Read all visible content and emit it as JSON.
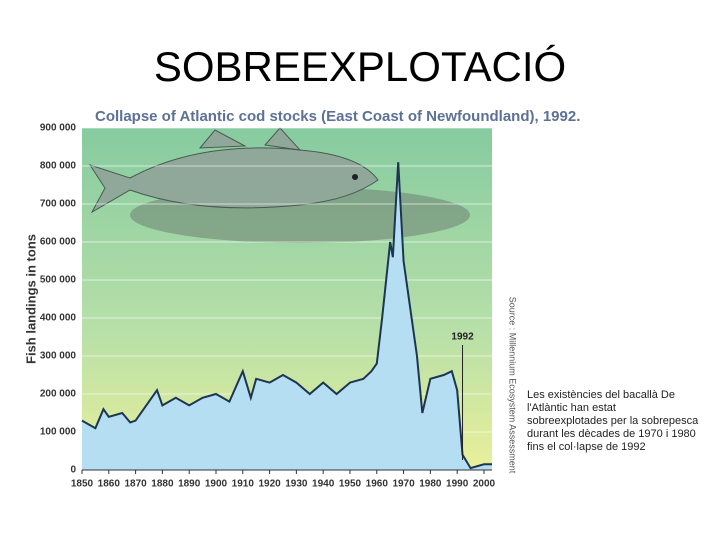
{
  "title": "SOBREEXPLOTACIÓ",
  "caption": [
    "Les existències del bacallà De",
    "l'Atlàntic han estat",
    "sobreexplotades per la sobrepesca",
    "durant les dècades de 1970 i 1980",
    "fins el col·lapse de 1992"
  ],
  "chart_data": {
    "type": "area",
    "title": "Collapse of Atlantic cod stocks (East Coast of Newfoundland), 1992.",
    "y_label": "Fish landings in tons",
    "source": "Source : Millennium Ecosystem Assessment",
    "annotations": [
      {
        "text": "1992",
        "x": 1992
      }
    ],
    "x": [
      1850,
      1855,
      1858,
      1860,
      1865,
      1868,
      1870,
      1875,
      1878,
      1880,
      1885,
      1890,
      1895,
      1900,
      1905,
      1910,
      1913,
      1915,
      1920,
      1925,
      1930,
      1935,
      1940,
      1945,
      1950,
      1955,
      1958,
      1960,
      1962,
      1965,
      1966,
      1968,
      1970,
      1972,
      1975,
      1977,
      1980,
      1985,
      1988,
      1990,
      1992,
      1995,
      2000,
      2003
    ],
    "values": [
      130000,
      110000,
      160000,
      140000,
      150000,
      125000,
      130000,
      180000,
      210000,
      170000,
      190000,
      170000,
      190000,
      200000,
      180000,
      260000,
      190000,
      240000,
      230000,
      250000,
      230000,
      200000,
      230000,
      200000,
      230000,
      240000,
      260000,
      280000,
      400000,
      600000,
      560000,
      810000,
      550000,
      450000,
      300000,
      150000,
      240000,
      250000,
      260000,
      210000,
      40000,
      5000,
      15000,
      15000
    ],
    "color": "#b5def3",
    "line_color": "#1d3550",
    "xlim": [
      1850,
      2003
    ],
    "xticks": [
      1850,
      1860,
      1870,
      1880,
      1890,
      1900,
      1910,
      1920,
      1930,
      1940,
      1950,
      1960,
      1970,
      1980,
      1990,
      2000
    ],
    "ylim": [
      0,
      900000
    ],
    "yticks": [
      0,
      {
        "value": 100000,
        "label": "100 000"
      },
      {
        "value": 200000,
        "label": "200 000"
      },
      {
        "value": 300000,
        "label": "300 000"
      },
      {
        "value": 400000,
        "label": "400 000"
      },
      {
        "value": 500000,
        "label": "500 000"
      },
      {
        "value": 600000,
        "label": "600 000"
      },
      {
        "value": 700000,
        "label": "700 000"
      },
      {
        "value": 800000,
        "label": "800 000"
      },
      {
        "value": 900000,
        "label": "900 000"
      }
    ],
    "grid": true
  }
}
